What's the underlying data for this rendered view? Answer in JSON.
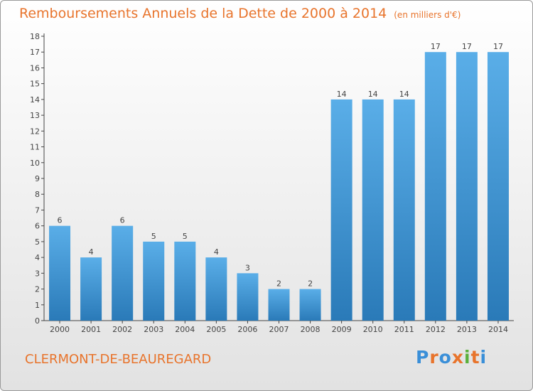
{
  "title": "Remboursements Annuels de la Dette de 2000 à 2014",
  "unit": "(en milliers d'€)",
  "commune": "CLERMONT-DE-BEAUREGARD",
  "logo": {
    "letters": [
      "P",
      "r",
      "o",
      "x",
      "i",
      "t",
      "i"
    ],
    "colors": [
      "#3a8fd8",
      "#e8742c",
      "#3a8fd8",
      "#e8742c",
      "#5ab03c",
      "#e8742c",
      "#3a8fd8"
    ]
  },
  "colors": {
    "title": "#e8742c",
    "bar_light": "#5aaee8",
    "bar_dark": "#2a7ab8",
    "axis": "#444444"
  },
  "chart_data": {
    "type": "bar",
    "title": "Remboursements Annuels de la Dette de 2000 à 2014",
    "ylabel": "en milliers d'€",
    "xlabel": "",
    "categories": [
      "2000",
      "2001",
      "2002",
      "2003",
      "2004",
      "2005",
      "2006",
      "2007",
      "2008",
      "2009",
      "2010",
      "2011",
      "2012",
      "2013",
      "2014"
    ],
    "values": [
      6,
      4,
      6,
      5,
      5,
      4,
      3,
      2,
      2,
      14,
      14,
      14,
      17,
      17,
      17
    ],
    "ylim": [
      0,
      18
    ],
    "yticks": [
      0,
      1,
      2,
      3,
      4,
      5,
      6,
      7,
      8,
      9,
      10,
      11,
      12,
      13,
      14,
      15,
      16,
      17,
      18
    ],
    "grid": false
  }
}
